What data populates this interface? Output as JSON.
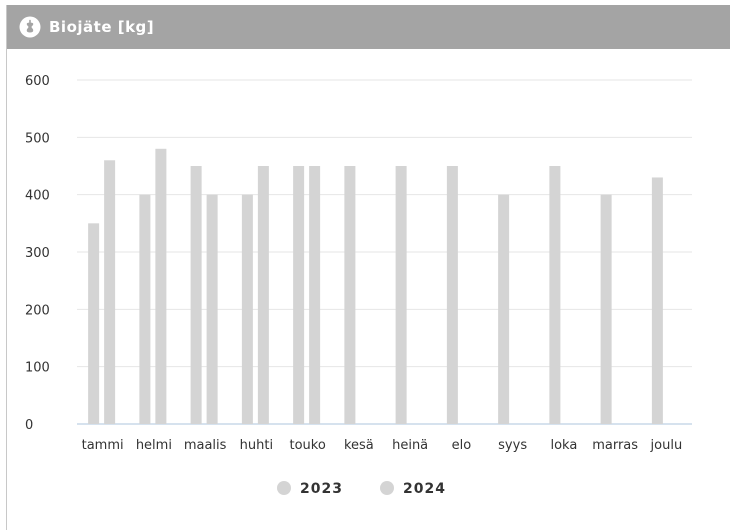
{
  "widget": {
    "title": "Biojäte [kg]",
    "icon": "apple-core-icon"
  },
  "colors": {
    "header_bg": "#a4a4a4",
    "bar": "#d4d4d4",
    "legend_dot": "#d4d4d4",
    "gridline": "#e6e6e6",
    "baseline": "#c9d8e8"
  },
  "chart_data": {
    "type": "bar",
    "categories": [
      "tammi",
      "helmi",
      "maalis",
      "huhti",
      "touko",
      "kesä",
      "heinä",
      "elo",
      "syys",
      "loka",
      "marras",
      "joulu"
    ],
    "series": [
      {
        "name": "2023",
        "values": [
          350,
          400,
          450,
          400,
          450,
          450,
          450,
          450,
          400,
          450,
          400,
          430
        ]
      },
      {
        "name": "2024",
        "values": [
          460,
          480,
          400,
          450,
          450,
          0,
          0,
          0,
          0,
          0,
          0,
          0
        ]
      }
    ],
    "ylim": [
      0,
      600
    ],
    "yticks": [
      0,
      100,
      200,
      300,
      400,
      500,
      600
    ],
    "grid": true,
    "legend_position": "bottom-center",
    "title": "",
    "xlabel": "",
    "ylabel": ""
  }
}
